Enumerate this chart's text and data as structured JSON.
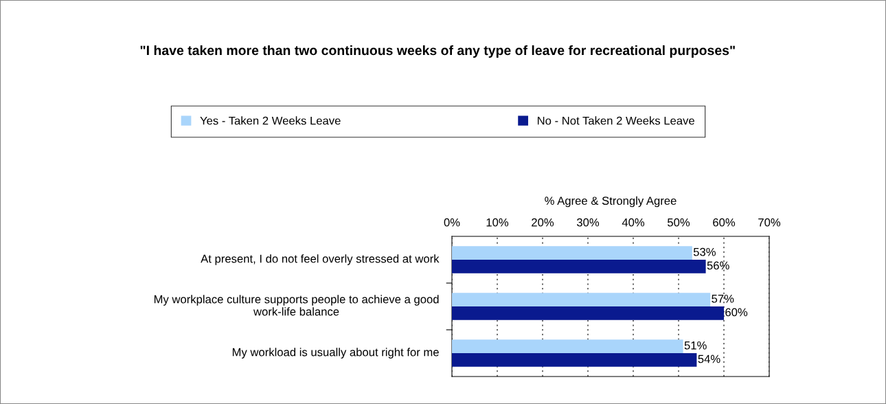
{
  "chart_data": {
    "type": "bar",
    "orientation": "horizontal",
    "title": "\"I have taken more than two continuous weeks of any type of leave for recreational purposes\"",
    "xlabel": "% Agree & Strongly Agree",
    "categories": [
      "At present, I do not feel overly stressed at work",
      "My workplace culture supports people to achieve a good\nwork-life balance",
      "My workload is usually about right for me"
    ],
    "series": [
      {
        "name": "Yes - Taken 2 Weeks Leave",
        "color": "#a9d5fb",
        "values": [
          53,
          57,
          51
        ],
        "value_labels": [
          "53%",
          "57%",
          "51%"
        ]
      },
      {
        "name": "No - Not Taken 2 Weeks Leave",
        "color": "#0a1a8f",
        "values": [
          56,
          60,
          54
        ],
        "value_labels": [
          "56%",
          "60%",
          "54%"
        ]
      }
    ],
    "xlim": [
      0,
      70
    ],
    "xticks": [
      {
        "value": 0,
        "label": "0%"
      },
      {
        "value": 10,
        "label": "10%"
      },
      {
        "value": 20,
        "label": "20%"
      },
      {
        "value": 30,
        "label": "30%"
      },
      {
        "value": 40,
        "label": "40%"
      },
      {
        "value": 50,
        "label": "50%"
      },
      {
        "value": 60,
        "label": "60%"
      },
      {
        "value": 70,
        "label": "70%"
      }
    ],
    "grid": "x",
    "legend": "top"
  }
}
